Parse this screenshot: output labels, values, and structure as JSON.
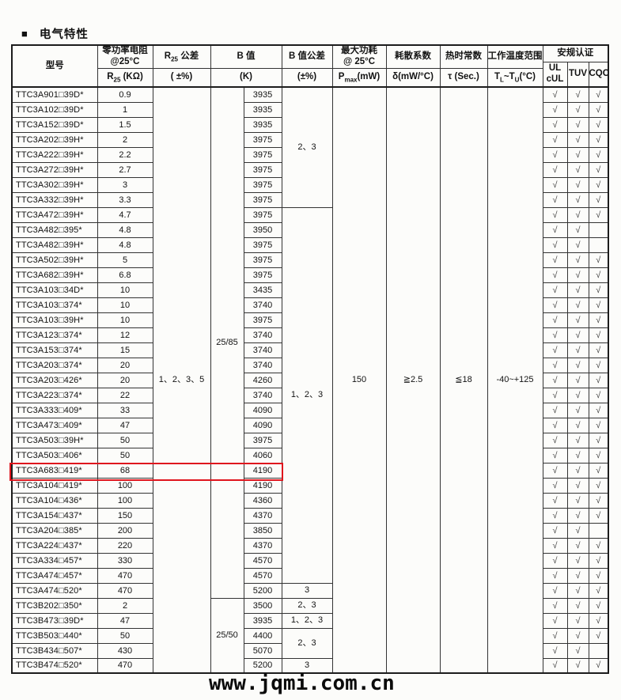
{
  "title": {
    "bullet": "■",
    "text": "电气特性"
  },
  "watermark": "www.jqmi.com.cn",
  "accent_red": "#df151d",
  "header": {
    "model": "型号",
    "r25_title": "零功率电阻\n@25°C",
    "r25_sub": {
      "pre": "R",
      "sub": "25",
      "post": " (KΩ)"
    },
    "tol_title": {
      "pre": "R",
      "sub": "25",
      "post": " 公差"
    },
    "tol_sub": "( ±%)",
    "b_title": "B 值",
    "b_sub": "(K)",
    "btol_title": "B 值公差",
    "btol_sub": "(±%)",
    "pmax_title": "最大功耗\n@ 25°C",
    "pmax_sub": {
      "pre": "P",
      "sub": "max",
      "post": "(mW)"
    },
    "delta_title": "耗散系数",
    "delta_sub": "δ(mW/°C)",
    "tau_title": "热时常数",
    "tau_sub": "τ (Sec.)",
    "trange_title": "工作温度范围",
    "trange_sub": {
      "p1": "T",
      "s1": "L",
      "p2": "~T",
      "s2": "U",
      "p3": "(°C)"
    },
    "cert_title": "安规认证",
    "cert_cols": [
      "UL\ncUL",
      "TUV",
      "CQC"
    ]
  },
  "shared": {
    "r25_tolerance": "1、2、3、5",
    "pmax": "150",
    "dissipation": "≧2.5",
    "thermal_time": "≦18",
    "temp_range": "-40~+125",
    "check": "√"
  },
  "b_type_groups": [
    {
      "label": "25/85",
      "rows": 34
    },
    {
      "label": "25/50",
      "rows": 5
    }
  ],
  "btol_groups": [
    {
      "label": "2、3",
      "rows": 8
    },
    {
      "label": "1、2、3",
      "rows": 25
    },
    {
      "label": "3",
      "rows": 1
    },
    {
      "label": "2、3",
      "rows": 1
    },
    {
      "label": "1、2、3",
      "rows": 1
    },
    {
      "label": "2、3",
      "rows": 2
    },
    {
      "label": "3",
      "rows": 1
    }
  ],
  "highlighted_row": 26,
  "rows": [
    {
      "model": "TTC3A901□39D*",
      "r25": "0.9",
      "b": "3935",
      "ul": true,
      "tuv": true,
      "cqc": true
    },
    {
      "model": "TTC3A102□39D*",
      "r25": "1",
      "b": "3935",
      "ul": true,
      "tuv": true,
      "cqc": true
    },
    {
      "model": "TTC3A152□39D*",
      "r25": "1.5",
      "b": "3935",
      "ul": true,
      "tuv": true,
      "cqc": true
    },
    {
      "model": "TTC3A202□39H*",
      "r25": "2",
      "b": "3975",
      "ul": true,
      "tuv": true,
      "cqc": true
    },
    {
      "model": "TTC3A222□39H*",
      "r25": "2.2",
      "b": "3975",
      "ul": true,
      "tuv": true,
      "cqc": true
    },
    {
      "model": "TTC3A272□39H*",
      "r25": "2.7",
      "b": "3975",
      "ul": true,
      "tuv": true,
      "cqc": true
    },
    {
      "model": "TTC3A302□39H*",
      "r25": "3",
      "b": "3975",
      "ul": true,
      "tuv": true,
      "cqc": true
    },
    {
      "model": "TTC3A332□39H*",
      "r25": "3.3",
      "b": "3975",
      "ul": true,
      "tuv": true,
      "cqc": true
    },
    {
      "model": "TTC3A472□39H*",
      "r25": "4.7",
      "b": "3975",
      "ul": true,
      "tuv": true,
      "cqc": true
    },
    {
      "model": "TTC3A482□395*",
      "r25": "4.8",
      "b": "3950",
      "ul": true,
      "tuv": true,
      "cqc": false
    },
    {
      "model": "TTC3A482□39H*",
      "r25": "4.8",
      "b": "3975",
      "ul": true,
      "tuv": true,
      "cqc": false
    },
    {
      "model": "TTC3A502□39H*",
      "r25": "5",
      "b": "3975",
      "ul": true,
      "tuv": true,
      "cqc": true
    },
    {
      "model": "TTC3A682□39H*",
      "r25": "6.8",
      "b": "3975",
      "ul": true,
      "tuv": true,
      "cqc": true
    },
    {
      "model": "TTC3A103□34D*",
      "r25": "10",
      "b": "3435",
      "ul": true,
      "tuv": true,
      "cqc": true
    },
    {
      "model": "TTC3A103□374*",
      "r25": "10",
      "b": "3740",
      "ul": true,
      "tuv": true,
      "cqc": true
    },
    {
      "model": "TTC3A103□39H*",
      "r25": "10",
      "b": "3975",
      "ul": true,
      "tuv": true,
      "cqc": true
    },
    {
      "model": "TTC3A123□374*",
      "r25": "12",
      "b": "3740",
      "ul": true,
      "tuv": true,
      "cqc": true
    },
    {
      "model": "TTC3A153□374*",
      "r25": "15",
      "b": "3740",
      "ul": true,
      "tuv": true,
      "cqc": true
    },
    {
      "model": "TTC3A203□374*",
      "r25": "20",
      "b": "3740",
      "ul": true,
      "tuv": true,
      "cqc": true
    },
    {
      "model": "TTC3A203□426*",
      "r25": "20",
      "b": "4260",
      "ul": true,
      "tuv": true,
      "cqc": true
    },
    {
      "model": "TTC3A223□374*",
      "r25": "22",
      "b": "3740",
      "ul": true,
      "tuv": true,
      "cqc": true
    },
    {
      "model": "TTC3A333□409*",
      "r25": "33",
      "b": "4090",
      "ul": true,
      "tuv": true,
      "cqc": true
    },
    {
      "model": "TTC3A473□409*",
      "r25": "47",
      "b": "4090",
      "ul": true,
      "tuv": true,
      "cqc": true
    },
    {
      "model": "TTC3A503□39H*",
      "r25": "50",
      "b": "3975",
      "ul": true,
      "tuv": true,
      "cqc": true
    },
    {
      "model": "TTC3A503□406*",
      "r25": "50",
      "b": "4060",
      "ul": true,
      "tuv": true,
      "cqc": true
    },
    {
      "model": "TTC3A683□419*",
      "r25": "68",
      "b": "4190",
      "ul": true,
      "tuv": true,
      "cqc": true
    },
    {
      "model": "TTC3A104□419*",
      "r25": "100",
      "b": "4190",
      "ul": true,
      "tuv": true,
      "cqc": true
    },
    {
      "model": "TTC3A104□436*",
      "r25": "100",
      "b": "4360",
      "ul": true,
      "tuv": true,
      "cqc": true
    },
    {
      "model": "TTC3A154□437*",
      "r25": "150",
      "b": "4370",
      "ul": true,
      "tuv": true,
      "cqc": true
    },
    {
      "model": "TTC3A204□385*",
      "r25": "200",
      "b": "3850",
      "ul": true,
      "tuv": true,
      "cqc": false
    },
    {
      "model": "TTC3A224□437*",
      "r25": "220",
      "b": "4370",
      "ul": true,
      "tuv": true,
      "cqc": true
    },
    {
      "model": "TTC3A334□457*",
      "r25": "330",
      "b": "4570",
      "ul": true,
      "tuv": true,
      "cqc": true
    },
    {
      "model": "TTC3A474□457*",
      "r25": "470",
      "b": "4570",
      "ul": true,
      "tuv": true,
      "cqc": true
    },
    {
      "model": "TTC3A474□520*",
      "r25": "470",
      "b": "5200",
      "ul": true,
      "tuv": true,
      "cqc": true
    },
    {
      "model": "TTC3B202□350*",
      "r25": "2",
      "b": "3500",
      "ul": true,
      "tuv": true,
      "cqc": true
    },
    {
      "model": "TTC3B473□39D*",
      "r25": "47",
      "b": "3935",
      "ul": true,
      "tuv": true,
      "cqc": true
    },
    {
      "model": "TTC3B503□440*",
      "r25": "50",
      "b": "4400",
      "ul": true,
      "tuv": true,
      "cqc": true
    },
    {
      "model": "TTC3B434□507*",
      "r25": "430",
      "b": "5070",
      "ul": true,
      "tuv": true,
      "cqc": false
    },
    {
      "model": "TTC3B474□520*",
      "r25": "470",
      "b": "5200",
      "ul": true,
      "tuv": true,
      "cqc": true
    }
  ]
}
